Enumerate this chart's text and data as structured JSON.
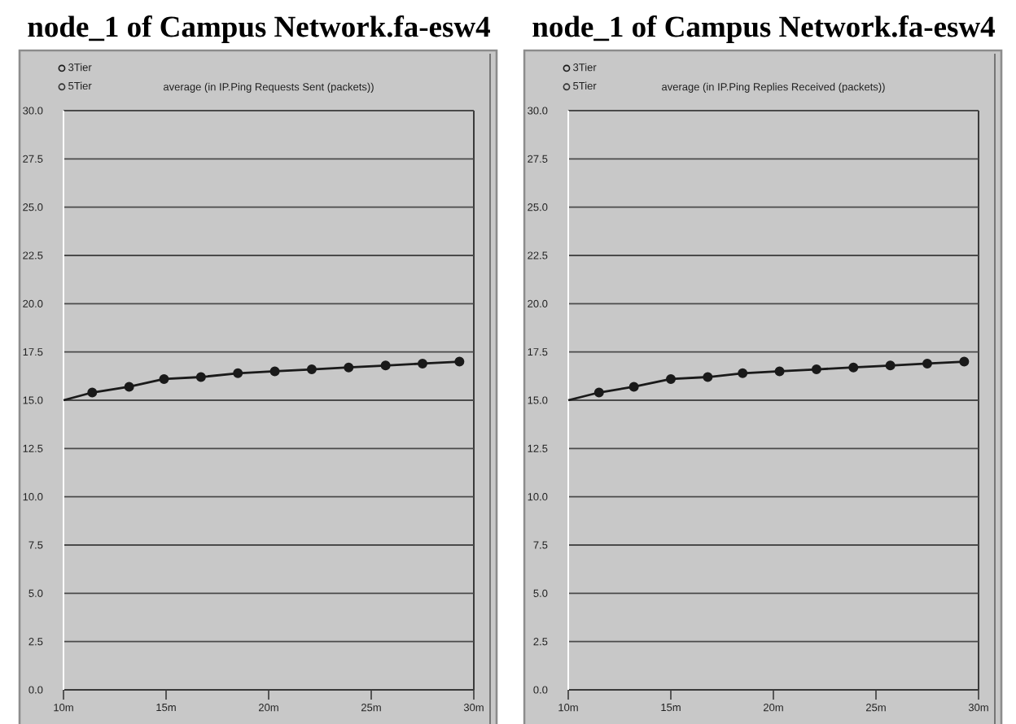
{
  "chart_data": [
    {
      "type": "line",
      "title": "node_1 of Campus Network.fa-esw4",
      "subtitle": "average (in IP.Ping Requests Sent (packets))",
      "x": [
        10,
        11.4,
        13.2,
        14.9,
        16.7,
        18.5,
        20.3,
        22.1,
        23.9,
        25.7,
        27.5,
        29.3
      ],
      "series": [
        {
          "name": "3Tier",
          "color": "#1a1a1a",
          "values": [
            15.0,
            15.4,
            15.7,
            16.1,
            16.2,
            16.4,
            16.5,
            16.6,
            16.7,
            16.8,
            16.9,
            17.0
          ]
        },
        {
          "name": "5Tier",
          "color": "#333333",
          "values": [
            null,
            null,
            null,
            null,
            null,
            null,
            null,
            null,
            null,
            null,
            null,
            null
          ]
        }
      ],
      "xlim": [
        10,
        30
      ],
      "xticks": [
        {
          "value": 10,
          "label": "10m"
        },
        {
          "value": 15,
          "label": "15m"
        },
        {
          "value": 20,
          "label": "20m"
        },
        {
          "value": 25,
          "label": "25m"
        },
        {
          "value": 30,
          "label": "30m"
        }
      ],
      "ylim": [
        0,
        30
      ],
      "yticks": [
        {
          "value": 0,
          "label": "0.0"
        },
        2.5,
        {
          "value": 5,
          "label": "5.0"
        },
        7.5,
        {
          "value": 10,
          "label": "10.0"
        },
        12.5,
        {
          "value": 15,
          "label": "15.0"
        },
        17.5,
        {
          "value": 20,
          "label": "20.0"
        },
        22.5,
        {
          "value": 25,
          "label": "25.0"
        },
        27.5,
        {
          "value": 30,
          "label": "30.0"
        }
      ],
      "grid": "y",
      "legend": "top left",
      "marker": "circle"
    },
    {
      "type": "line",
      "title": "node_1 of Campus Network.fa-esw4",
      "subtitle": "average (in IP.Ping Replies Received (packets))",
      "x": [
        10,
        11.5,
        13.2,
        15.0,
        16.8,
        18.5,
        20.3,
        22.1,
        23.9,
        25.7,
        27.5,
        29.3
      ],
      "series": [
        {
          "name": "3Tier",
          "color": "#1a1a1a",
          "values": [
            15.0,
            15.4,
            15.7,
            16.1,
            16.2,
            16.4,
            16.5,
            16.6,
            16.7,
            16.8,
            16.9,
            17.0
          ]
        },
        {
          "name": "5Tier",
          "color": "#333333",
          "values": [
            null,
            null,
            null,
            null,
            null,
            null,
            null,
            null,
            null,
            null,
            null,
            null
          ]
        }
      ],
      "xlim": [
        10,
        30
      ],
      "xticks": [
        {
          "value": 10,
          "label": "10m"
        },
        {
          "value": 15,
          "label": "15m"
        },
        {
          "value": 20,
          "label": "20m"
        },
        {
          "value": 25,
          "label": "25m"
        },
        {
          "value": 30,
          "label": "30m"
        }
      ],
      "ylim": [
        0,
        30
      ],
      "yticks": [
        {
          "value": 0,
          "label": "0.0"
        },
        2.5,
        {
          "value": 5,
          "label": "5.0"
        },
        7.5,
        {
          "value": 10,
          "label": "10.0"
        },
        12.5,
        {
          "value": 15,
          "label": "15.0"
        },
        17.5,
        {
          "value": 20,
          "label": "20.0"
        },
        22.5,
        {
          "value": 25,
          "label": "25.0"
        },
        27.5,
        {
          "value": 30,
          "label": "30.0"
        }
      ],
      "grid": "y",
      "legend": "top left",
      "marker": "circle"
    }
  ]
}
